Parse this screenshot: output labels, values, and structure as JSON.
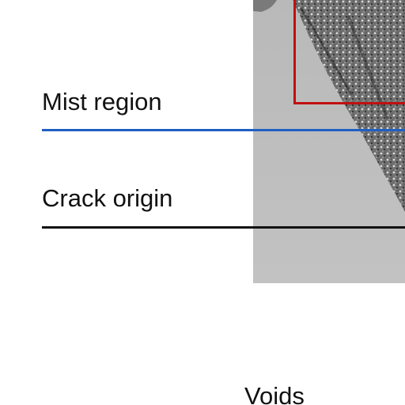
{
  "labels": {
    "mist_region": "Mist region",
    "crack_origin": "Crack origin",
    "voids": "Voids"
  },
  "colors": {
    "mist_line": "#1f5fc4",
    "crack_line": "#111111",
    "highlight_box": "#c01010",
    "micrograph_background": "#bdbdbd"
  }
}
